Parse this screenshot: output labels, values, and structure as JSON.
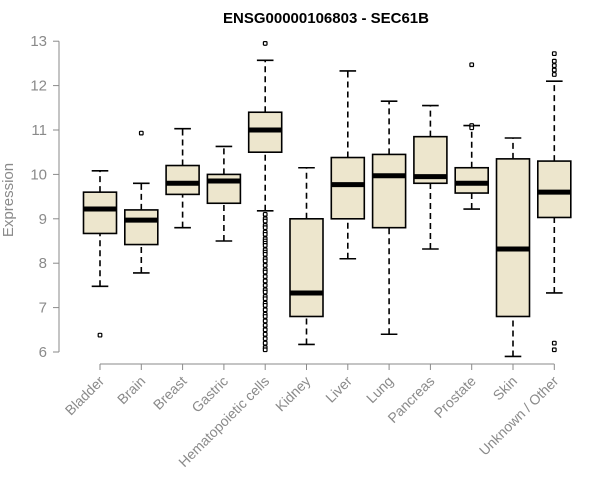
{
  "chart_data": {
    "type": "boxplot",
    "title": "ENSG00000106803 - SEC61B",
    "ylabel": "Expression",
    "xlabel": "",
    "ylim": [
      5.8,
      13.1
    ],
    "yticks": [
      6,
      7,
      8,
      9,
      10,
      11,
      12,
      13
    ],
    "box_fill": "#ede6cd",
    "categories": [
      "Bladder",
      "Brain",
      "Breast",
      "Gastric",
      "Hematopoietic cells",
      "Kidney",
      "Liver",
      "Lung",
      "Pancreas",
      "Prostate",
      "Skin",
      "Unknown / Other"
    ],
    "boxes": [
      {
        "category": "Bladder",
        "min": 7.48,
        "q1": 8.67,
        "median": 9.22,
        "q3": 9.6,
        "max": 10.08,
        "outliers": [
          6.38
        ]
      },
      {
        "category": "Brain",
        "min": 7.78,
        "q1": 8.42,
        "median": 8.97,
        "q3": 9.2,
        "max": 9.8,
        "outliers": [
          10.93
        ]
      },
      {
        "category": "Breast",
        "min": 8.8,
        "q1": 9.55,
        "median": 9.8,
        "q3": 10.2,
        "max": 11.03,
        "outliers": []
      },
      {
        "category": "Gastric",
        "min": 8.5,
        "q1": 9.35,
        "median": 9.85,
        "q3": 10.0,
        "max": 10.63,
        "outliers": []
      },
      {
        "category": "Hematopoietic cells",
        "min": 9.18,
        "q1": 10.5,
        "median": 11.0,
        "q3": 11.4,
        "max": 12.57,
        "outliers": [
          12.95,
          9.1,
          9.0,
          8.95,
          8.85,
          8.8,
          8.7,
          8.65,
          8.55,
          8.5,
          8.45,
          8.4,
          8.3,
          8.25,
          8.2,
          8.1,
          8.05,
          7.95,
          7.85,
          7.8,
          7.7,
          7.6,
          7.5,
          7.4,
          7.35,
          7.25,
          7.2,
          7.1,
          7.05,
          6.95,
          6.85,
          6.8,
          6.7,
          6.6,
          6.5,
          6.4,
          6.3,
          6.2,
          6.1,
          6.05
        ]
      },
      {
        "category": "Kidney",
        "min": 6.17,
        "q1": 6.8,
        "median": 7.33,
        "q3": 9.0,
        "max": 10.15,
        "outliers": []
      },
      {
        "category": "Liver",
        "min": 8.1,
        "q1": 9.0,
        "median": 9.77,
        "q3": 10.38,
        "max": 12.33,
        "outliers": []
      },
      {
        "category": "Lung",
        "min": 6.4,
        "q1": 8.8,
        "median": 9.97,
        "q3": 10.45,
        "max": 11.65,
        "outliers": []
      },
      {
        "category": "Pancreas",
        "min": 8.32,
        "q1": 9.8,
        "median": 9.95,
        "q3": 10.85,
        "max": 11.55,
        "outliers": []
      },
      {
        "category": "Prostate",
        "min": 9.22,
        "q1": 9.58,
        "median": 9.8,
        "q3": 10.15,
        "max": 11.1,
        "outliers": [
          12.47,
          11.1,
          11.05
        ]
      },
      {
        "category": "Skin",
        "min": 5.9,
        "q1": 6.8,
        "median": 8.32,
        "q3": 10.35,
        "max": 10.82,
        "outliers": []
      },
      {
        "category": "Unknown / Other",
        "min": 7.33,
        "q1": 9.03,
        "median": 9.6,
        "q3": 10.3,
        "max": 12.1,
        "outliers": [
          12.72,
          12.55,
          12.45,
          12.35,
          12.25,
          6.2,
          6.05
        ]
      }
    ]
  }
}
